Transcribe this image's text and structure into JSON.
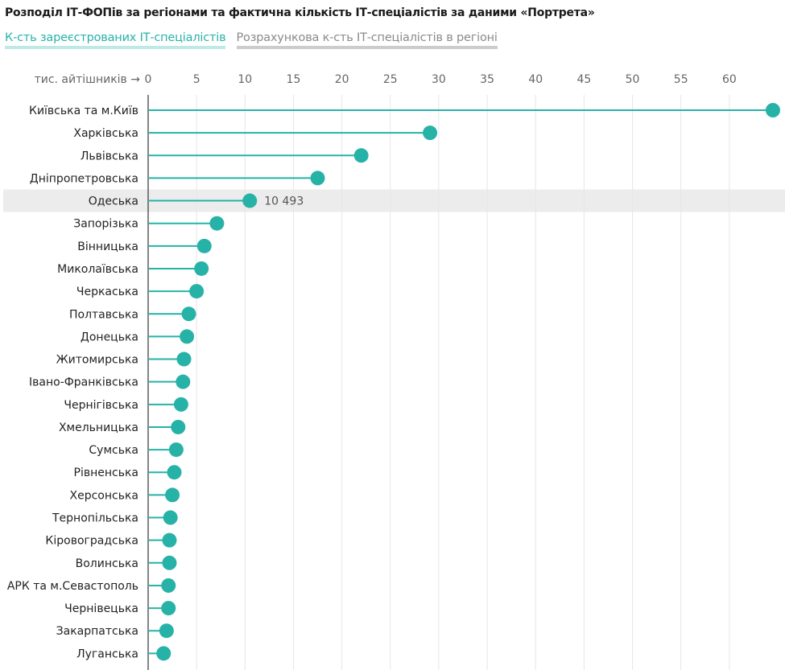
{
  "title": "Розподіл ІТ-ФОПів за регіонами та фактична кількість ІТ-спеціалістів за даними «Портрета»",
  "tabs": [
    {
      "label": "К-сть зареєстрованих ІТ-спеціалістів",
      "active": true
    },
    {
      "label": "Розрахункова к-сть ІТ-спеціалістів в регіоні",
      "active": false
    }
  ],
  "colors": {
    "accent": "#27b2a8",
    "grid": "#e6e6e6",
    "highlight": "#ececec",
    "axis": "#333333"
  },
  "chart_data": {
    "type": "lollipop",
    "xlabel": "тис. айтішників →",
    "xlim": [
      0,
      64.5
    ],
    "ticks": [
      0,
      5,
      10,
      15,
      20,
      25,
      30,
      35,
      40,
      45,
      50,
      55,
      60
    ],
    "grid": true,
    "highlight": {
      "category": "Одеська",
      "label": "10 493"
    },
    "categories": [
      "Київська та м.Київ",
      "Харківська",
      "Львівська",
      "Дніпропетровська",
      "Одеська",
      "Запорізька",
      "Вінницька",
      "Миколаївська",
      "Черкаська",
      "Полтавська",
      "Донецька",
      "Житомирська",
      "Івано-Франківська",
      "Чернігівська",
      "Хмельницька",
      "Сумська",
      "Рівненська",
      "Херсонська",
      "Тернопільська",
      "Кіровоградська",
      "Волинська",
      "АРК та м.Севастополь",
      "Чернівецька",
      "Закарпатська",
      "Луганська"
    ],
    "values": [
      64.5,
      29.1,
      22.0,
      17.5,
      10.493,
      7.1,
      5.8,
      5.5,
      5.0,
      4.2,
      4.0,
      3.7,
      3.6,
      3.4,
      3.1,
      2.9,
      2.7,
      2.5,
      2.3,
      2.2,
      2.2,
      2.1,
      2.1,
      1.9,
      1.6
    ]
  }
}
